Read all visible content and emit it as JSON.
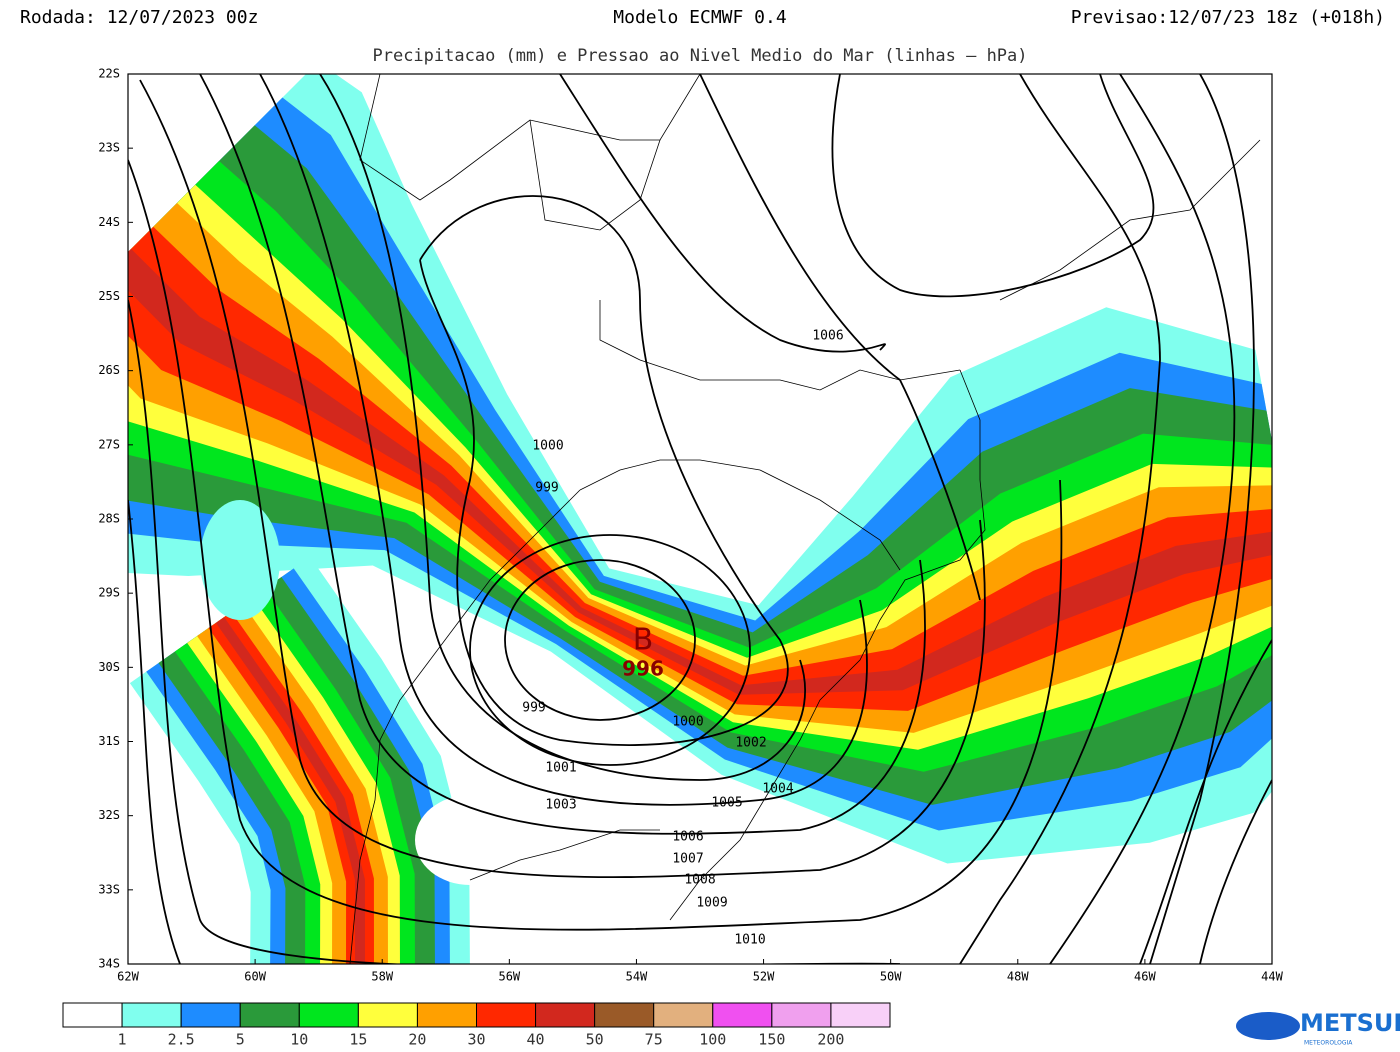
{
  "header": {
    "left": "Rodada: 12/07/2023 00z",
    "center": "Modelo ECMWF 0.4",
    "right": "Previsao:12/07/23 18z (+018h)",
    "subtitle": "Precipitacao (mm) e Pressao ao Nivel Medio do Mar (linhas – hPa)"
  },
  "map": {
    "lat_labels": [
      "22S",
      "23S",
      "24S",
      "25S",
      "26S",
      "27S",
      "28S",
      "29S",
      "30S",
      "31S",
      "32S",
      "33S",
      "34S"
    ],
    "lon_labels": [
      "62W",
      "60W",
      "58W",
      "56W",
      "54W",
      "52W",
      "50W",
      "48W",
      "46W",
      "44W"
    ],
    "isobar_labels": [
      "1006",
      "1000",
      "999",
      "999",
      "1000",
      "1002",
      "1001",
      "1004",
      "1003",
      "1005",
      "1006",
      "1007",
      "1008",
      "1009",
      "1010"
    ],
    "low": {
      "letter": "B",
      "value": "996"
    }
  },
  "colorbar": {
    "colors": [
      "#ffffff",
      "#80ffee",
      "#1e8cff",
      "#2a9a3a",
      "#00e61e",
      "#ffff3c",
      "#ffa000",
      "#ff2800",
      "#d2281e",
      "#9a5a28",
      "#e2b07e",
      "#f050f0",
      "#f0a0ee",
      "#f8d0f8"
    ],
    "labels": [
      "1",
      "2.5",
      "5",
      "10",
      "15",
      "20",
      "30",
      "40",
      "50",
      "75",
      "100",
      "150",
      "200"
    ]
  },
  "logo": {
    "name": "METSUL",
    "tagline": "METEOROLOGIA"
  }
}
